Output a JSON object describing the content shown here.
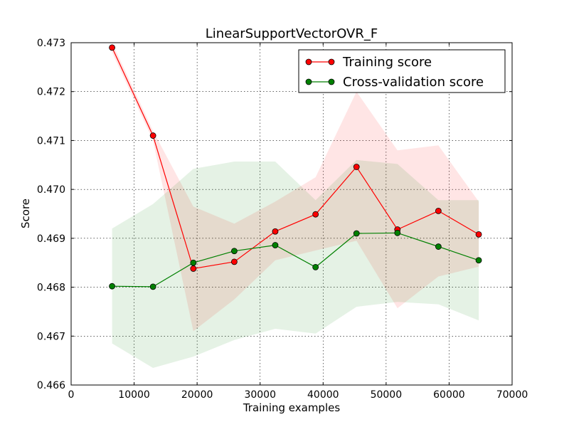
{
  "chart_data": {
    "type": "line",
    "title": "LinearSupportVectorOVR_F",
    "xlabel": "Training examples",
    "ylabel": "Score",
    "xlim": [
      0,
      70000
    ],
    "ylim": [
      0.466,
      0.473
    ],
    "xticks": [
      0,
      10000,
      20000,
      30000,
      40000,
      50000,
      60000,
      70000
    ],
    "xtick_labels": [
      "0",
      "10000",
      "20000",
      "30000",
      "40000",
      "50000",
      "60000",
      "70000"
    ],
    "yticks": [
      0.466,
      0.467,
      0.468,
      0.469,
      0.47,
      0.471,
      0.472,
      0.473
    ],
    "ytick_labels": [
      "0.466",
      "0.467",
      "0.468",
      "0.469",
      "0.470",
      "0.471",
      "0.472",
      "0.473"
    ],
    "grid": true,
    "legend_position": "top-right",
    "x": [
      6500,
      13000,
      19400,
      25900,
      32400,
      38800,
      45300,
      51800,
      58300,
      64700
    ],
    "series": [
      {
        "name": "Training score",
        "color": "#ff0000",
        "band_color": "#ff0000",
        "values": [
          0.4729,
          0.4711,
          0.46838,
          0.46852,
          0.46914,
          0.46949,
          0.47046,
          0.46918,
          0.46956,
          0.46908
        ],
        "upper": [
          0.473,
          0.4712,
          0.46965,
          0.4693,
          0.46975,
          0.47025,
          0.472,
          0.4708,
          0.4709,
          0.46975
        ],
        "lower": [
          0.4728,
          0.471,
          0.4671,
          0.46775,
          0.46855,
          0.46875,
          0.46895,
          0.46757,
          0.46822,
          0.46842
        ]
      },
      {
        "name": "Cross-validation score",
        "color": "#008000",
        "band_color": "#008000",
        "values": [
          0.46802,
          0.46801,
          0.4685,
          0.46874,
          0.46886,
          0.46841,
          0.4691,
          0.46911,
          0.46883,
          0.46855
        ],
        "upper": [
          0.4692,
          0.4697,
          0.47042,
          0.47057,
          0.47057,
          0.46978,
          0.4706,
          0.47052,
          0.46978,
          0.46978
        ],
        "lower": [
          0.46685,
          0.46635,
          0.46658,
          0.46692,
          0.46715,
          0.46705,
          0.4676,
          0.4677,
          0.46765,
          0.46732
        ]
      }
    ]
  }
}
